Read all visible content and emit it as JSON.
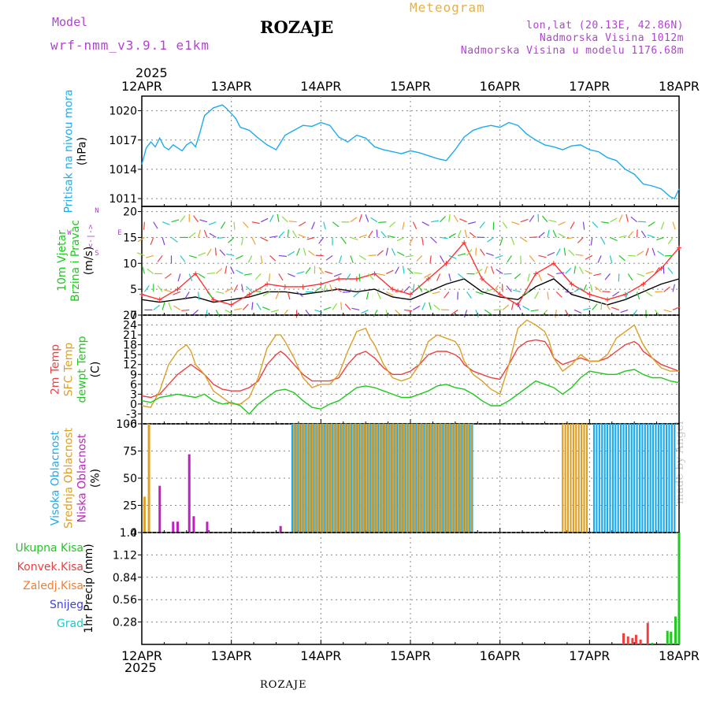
{
  "header": {
    "model_label": "Model",
    "model_version": "wrf-nmm_v3.9.1 e1km",
    "title": "ROZAJE",
    "subtitle": "Meteogram",
    "coords": "lon,lat (20.13E, 42.86N)",
    "elevation": "Nadmorska Visina 1012m",
    "model_elevation": "Nadmorska Visina u modelu 1176.68m"
  },
  "year": "2025",
  "footer": "ROZAJE",
  "signature": "made by Angel",
  "colors": {
    "pressure": "#1eaaee",
    "t2m": "#ee4040",
    "sfc": "#dca028",
    "dewpt": "#20c820",
    "high_cloud": "#1eaaee",
    "mid_cloud": "#dca028",
    "low_cloud": "#c020c0",
    "wind_speed": "#000000",
    "gust": "#ff3030",
    "total_precip": "#20c820",
    "conv_precip": "#ee4040",
    "frozen_precip": "#f08030",
    "snow": "#4040dd",
    "hail": "#20c8c8"
  },
  "chart_data": [
    {
      "type": "line",
      "panel": "pressure",
      "ylabels": [
        "Pritisak na nivou mora",
        "(hPa)"
      ],
      "x_ticks": [
        "12APR",
        "13APR",
        "14APR",
        "15APR",
        "16APR",
        "17APR",
        "18APR"
      ],
      "x_days": [
        0,
        6
      ],
      "y_ticks": [
        1011,
        1014,
        1017,
        1020
      ],
      "ylim": [
        1010.2,
        1021.5
      ],
      "series": [
        {
          "key": "pressure",
          "x": [
            0,
            0.05,
            0.1,
            0.15,
            0.2,
            0.25,
            0.3,
            0.35,
            0.4,
            0.45,
            0.5,
            0.55,
            0.6,
            0.65,
            0.7,
            0.8,
            0.9,
            0.95,
            1.0,
            1.05,
            1.1,
            1.2,
            1.3,
            1.4,
            1.5,
            1.6,
            1.7,
            1.8,
            1.9,
            2.0,
            2.1,
            2.2,
            2.3,
            2.4,
            2.5,
            2.6,
            2.7,
            2.8,
            2.9,
            3.0,
            3.1,
            3.2,
            3.3,
            3.4,
            3.5,
            3.6,
            3.7,
            3.8,
            3.9,
            4.0,
            4.1,
            4.2,
            4.3,
            4.4,
            4.5,
            4.6,
            4.7,
            4.8,
            4.9,
            5.0,
            5.1,
            5.2,
            5.3,
            5.4,
            5.5,
            5.6,
            5.7,
            5.8,
            5.9,
            5.95,
            6.0
          ],
          "y": [
            1014.5,
            1016.2,
            1016.8,
            1016.3,
            1017.2,
            1016.3,
            1016.0,
            1016.5,
            1016.2,
            1015.9,
            1016.5,
            1016.8,
            1016.3,
            1017.8,
            1019.5,
            1020.3,
            1020.6,
            1020.2,
            1019.7,
            1019.2,
            1018.3,
            1018.0,
            1017.2,
            1016.5,
            1016.0,
            1017.5,
            1018.0,
            1018.5,
            1018.4,
            1018.8,
            1018.5,
            1017.3,
            1016.8,
            1017.5,
            1017.2,
            1016.3,
            1016.0,
            1015.8,
            1015.6,
            1015.9,
            1015.7,
            1015.4,
            1015.1,
            1014.9,
            1016.0,
            1017.3,
            1018.0,
            1018.3,
            1018.5,
            1018.3,
            1018.8,
            1018.5,
            1017.6,
            1017.0,
            1016.5,
            1016.3,
            1016.0,
            1016.4,
            1016.5,
            1016.0,
            1015.8,
            1015.2,
            1014.9,
            1014.0,
            1013.5,
            1012.5,
            1012.3,
            1012.0,
            1011.2,
            1011.0,
            1012.0
          ]
        }
      ]
    },
    {
      "type": "line",
      "panel": "wind",
      "ylabels": [
        "10m Vjetar",
        "Brzina i Pravac",
        "(m/s)"
      ],
      "direction_legend": [
        "N",
        "E",
        "W",
        "S"
      ],
      "y_ticks": [
        0,
        5,
        10,
        15,
        20
      ],
      "ylim": [
        0,
        21
      ],
      "arrow_levels": [
        1,
        4.5,
        8,
        11.5,
        15,
        18
      ],
      "series": [
        {
          "key": "wind_speed",
          "name": "",
          "x": [
            0,
            0.2,
            0.4,
            0.6,
            0.8,
            1.0,
            1.2,
            1.4,
            1.6,
            1.8,
            2.0,
            2.2,
            2.4,
            2.6,
            2.8,
            3.0,
            3.2,
            3.4,
            3.6,
            3.8,
            4.0,
            4.2,
            4.4,
            4.6,
            4.8,
            5.0,
            5.2,
            5.4,
            5.6,
            5.8,
            6.0
          ],
          "y": [
            3,
            2.5,
            3,
            3.5,
            2.5,
            3,
            3.5,
            4.5,
            4.5,
            4,
            4.5,
            5,
            4.5,
            5,
            3.5,
            3,
            4.5,
            6,
            7,
            4.5,
            3.5,
            3,
            5.5,
            7,
            4,
            3,
            2,
            3,
            4.5,
            6,
            7
          ]
        },
        {
          "key": "gust",
          "name": "",
          "x": [
            0,
            0.2,
            0.4,
            0.6,
            0.8,
            1.0,
            1.2,
            1.4,
            1.6,
            1.8,
            2.0,
            2.2,
            2.4,
            2.6,
            2.8,
            3.0,
            3.2,
            3.4,
            3.6,
            3.8,
            4.0,
            4.2,
            4.4,
            4.6,
            4.8,
            5.0,
            5.2,
            5.4,
            5.6,
            5.8,
            6.0
          ],
          "y": [
            4,
            3,
            5,
            8,
            3,
            2,
            4,
            6,
            5.5,
            5.5,
            6,
            7,
            7,
            8,
            5,
            4,
            7,
            10,
            14,
            7,
            4,
            2,
            8,
            10,
            6,
            4,
            3,
            4,
            6,
            9,
            13
          ]
        }
      ]
    },
    {
      "type": "line",
      "panel": "temperature",
      "ylabels": [
        "2m Temp",
        "SFC Temp",
        "dewpt Temp",
        "(C)"
      ],
      "y_ticks": [
        -6,
        -3,
        0,
        3,
        6,
        9,
        12,
        15,
        18,
        21,
        24,
        27
      ],
      "ylim": [
        -6,
        27
      ],
      "series": [
        {
          "key": "t2m",
          "x": [
            0,
            0.1,
            0.2,
            0.3,
            0.4,
            0.5,
            0.55,
            0.6,
            0.7,
            0.8,
            0.9,
            1.0,
            1.1,
            1.2,
            1.3,
            1.4,
            1.5,
            1.55,
            1.6,
            1.7,
            1.8,
            1.9,
            2.0,
            2.1,
            2.2,
            2.3,
            2.4,
            2.5,
            2.55,
            2.6,
            2.7,
            2.8,
            2.9,
            3.0,
            3.1,
            3.2,
            3.3,
            3.4,
            3.5,
            3.55,
            3.6,
            3.7,
            3.8,
            3.9,
            4.0,
            4.1,
            4.2,
            4.3,
            4.4,
            4.5,
            4.55,
            4.6,
            4.7,
            4.8,
            4.9,
            5.0,
            5.1,
            5.2,
            5.3,
            5.4,
            5.5,
            5.55,
            5.6,
            5.7,
            5.8,
            5.9,
            6.0
          ],
          "y": [
            2.5,
            2,
            3,
            6,
            9,
            11,
            12,
            11,
            9,
            6,
            4.5,
            4,
            4,
            5,
            7,
            12,
            15,
            16,
            15,
            12,
            9,
            7,
            7,
            7,
            8,
            12,
            15,
            16,
            15,
            14,
            11,
            9,
            9,
            10,
            12,
            15,
            16,
            16,
            15,
            14,
            12,
            10,
            9,
            8,
            7.5,
            12,
            17,
            19,
            19.5,
            19,
            17,
            14,
            12,
            13,
            14,
            13,
            13,
            14,
            16,
            18,
            19,
            18,
            16,
            14,
            12,
            11,
            10
          ]
        },
        {
          "key": "sfc",
          "x": [
            0,
            0.1,
            0.2,
            0.3,
            0.4,
            0.5,
            0.55,
            0.6,
            0.7,
            0.8,
            0.9,
            1.0,
            1.1,
            1.2,
            1.3,
            1.4,
            1.5,
            1.55,
            1.6,
            1.7,
            1.8,
            1.9,
            2.0,
            2.1,
            2.2,
            2.3,
            2.4,
            2.5,
            2.55,
            2.6,
            2.7,
            2.8,
            2.9,
            3.0,
            3.1,
            3.2,
            3.3,
            3.4,
            3.5,
            3.55,
            3.6,
            3.7,
            3.8,
            3.9,
            4.0,
            4.1,
            4.2,
            4.3,
            4.4,
            4.5,
            4.55,
            4.6,
            4.7,
            4.8,
            4.9,
            5.0,
            5.1,
            5.2,
            5.3,
            5.4,
            5.5,
            5.55,
            5.6,
            5.7,
            5.8,
            5.9,
            6.0
          ],
          "y": [
            -0.5,
            -1,
            4,
            12,
            16,
            18,
            16,
            12,
            9,
            4,
            2,
            0,
            0,
            2,
            8,
            17,
            21,
            21,
            19,
            14,
            8,
            5,
            6,
            6,
            9,
            16,
            22,
            23,
            20,
            18,
            12,
            8,
            7,
            8,
            12,
            19,
            21,
            20,
            19,
            17,
            13,
            9,
            7,
            4.5,
            3,
            12,
            23,
            25.5,
            24,
            22,
            19,
            14,
            10,
            12,
            15,
            13,
            13,
            15,
            20,
            22,
            24,
            21,
            18,
            14,
            11,
            10,
            10
          ]
        },
        {
          "key": "dewpt",
          "x": [
            0,
            0.1,
            0.2,
            0.3,
            0.4,
            0.5,
            0.6,
            0.7,
            0.8,
            0.9,
            1.0,
            1.1,
            1.2,
            1.3,
            1.4,
            1.5,
            1.6,
            1.7,
            1.8,
            1.9,
            2.0,
            2.1,
            2.2,
            2.3,
            2.4,
            2.5,
            2.6,
            2.7,
            2.8,
            2.9,
            3.0,
            3.1,
            3.2,
            3.3,
            3.4,
            3.5,
            3.6,
            3.7,
            3.8,
            3.9,
            4.0,
            4.1,
            4.2,
            4.3,
            4.4,
            4.5,
            4.6,
            4.7,
            4.8,
            4.9,
            5.0,
            5.1,
            5.2,
            5.3,
            5.4,
            5.5,
            5.6,
            5.7,
            5.8,
            5.9,
            6.0
          ],
          "y": [
            1,
            0.5,
            2,
            2.5,
            3,
            2.5,
            2,
            3,
            1,
            0,
            0.5,
            -0.5,
            -3,
            0,
            2,
            4,
            4.5,
            3.5,
            1,
            -1,
            -1.5,
            0,
            1,
            3,
            5,
            5.5,
            5,
            4,
            3,
            2,
            2,
            3,
            4,
            5.5,
            6,
            5,
            4.5,
            3,
            1,
            -0.5,
            -0.5,
            1,
            3,
            5,
            7,
            6,
            5,
            3,
            5,
            8,
            10,
            9.5,
            9,
            9,
            10,
            10.5,
            9,
            8,
            8,
            7,
            6.5
          ]
        }
      ]
    },
    {
      "type": "bar",
      "panel": "clouds",
      "ylabels": [
        "Visoka Oblacnost",
        "Srednja Oblacnost",
        "Niska Oblacnost",
        "(%)"
      ],
      "y_ticks": [
        0,
        25,
        50,
        75,
        100
      ],
      "ylim": [
        0,
        100
      ],
      "spans": [
        {
          "key": "high_cloud",
          "from": 1.68,
          "to": 3.7,
          "value": 100
        },
        {
          "key": "mid_cloud",
          "from": 1.7,
          "to": 3.7,
          "value": 100
        },
        {
          "key": "mid_cloud",
          "from": 4.7,
          "to": 4.98,
          "value": 100
        },
        {
          "key": "high_cloud",
          "from": 5.05,
          "to": 5.98,
          "value": 100
        }
      ],
      "bars": [
        {
          "key": "mid_cloud",
          "x": 0.03,
          "y": 33
        },
        {
          "key": "mid_cloud",
          "x": 0.08,
          "y": 100
        },
        {
          "key": "low_cloud",
          "x": 0.2,
          "y": 43
        },
        {
          "key": "low_cloud",
          "x": 0.35,
          "y": 10
        },
        {
          "key": "low_cloud",
          "x": 0.4,
          "y": 10
        },
        {
          "key": "low_cloud",
          "x": 0.53,
          "y": 72
        },
        {
          "key": "low_cloud",
          "x": 0.58,
          "y": 15
        },
        {
          "key": "low_cloud",
          "x": 0.73,
          "y": 10
        },
        {
          "key": "low_cloud",
          "x": 1.55,
          "y": 6
        }
      ]
    },
    {
      "type": "bar",
      "panel": "precip",
      "ylabels": [
        "1hr Precip (mm)"
      ],
      "legend": [
        "Ukupna Kisa",
        "Konvek.Kisa",
        "Zaledj.Kisa",
        "Snijeg",
        "Grad"
      ],
      "y_ticks": [
        0.28,
        0.56,
        0.84,
        1.12,
        1.4
      ],
      "ylim": [
        0,
        1.4
      ],
      "bars": [
        {
          "key": "conv_precip",
          "x": 5.38,
          "y": 0.14
        },
        {
          "key": "conv_precip",
          "x": 5.43,
          "y": 0.1
        },
        {
          "key": "conv_precip",
          "x": 5.48,
          "y": 0.08
        },
        {
          "key": "conv_precip",
          "x": 5.52,
          "y": 0.12
        },
        {
          "key": "conv_precip",
          "x": 5.57,
          "y": 0.06
        },
        {
          "key": "conv_precip",
          "x": 5.65,
          "y": 0.27
        },
        {
          "key": "total_precip",
          "x": 5.7,
          "y": 0.02
        },
        {
          "key": "total_precip",
          "x": 5.87,
          "y": 0.17
        },
        {
          "key": "total_precip",
          "x": 5.91,
          "y": 0.16
        },
        {
          "key": "total_precip",
          "x": 5.96,
          "y": 0.35
        },
        {
          "key": "total_precip",
          "x": 6.0,
          "y": 1.4
        }
      ]
    }
  ]
}
